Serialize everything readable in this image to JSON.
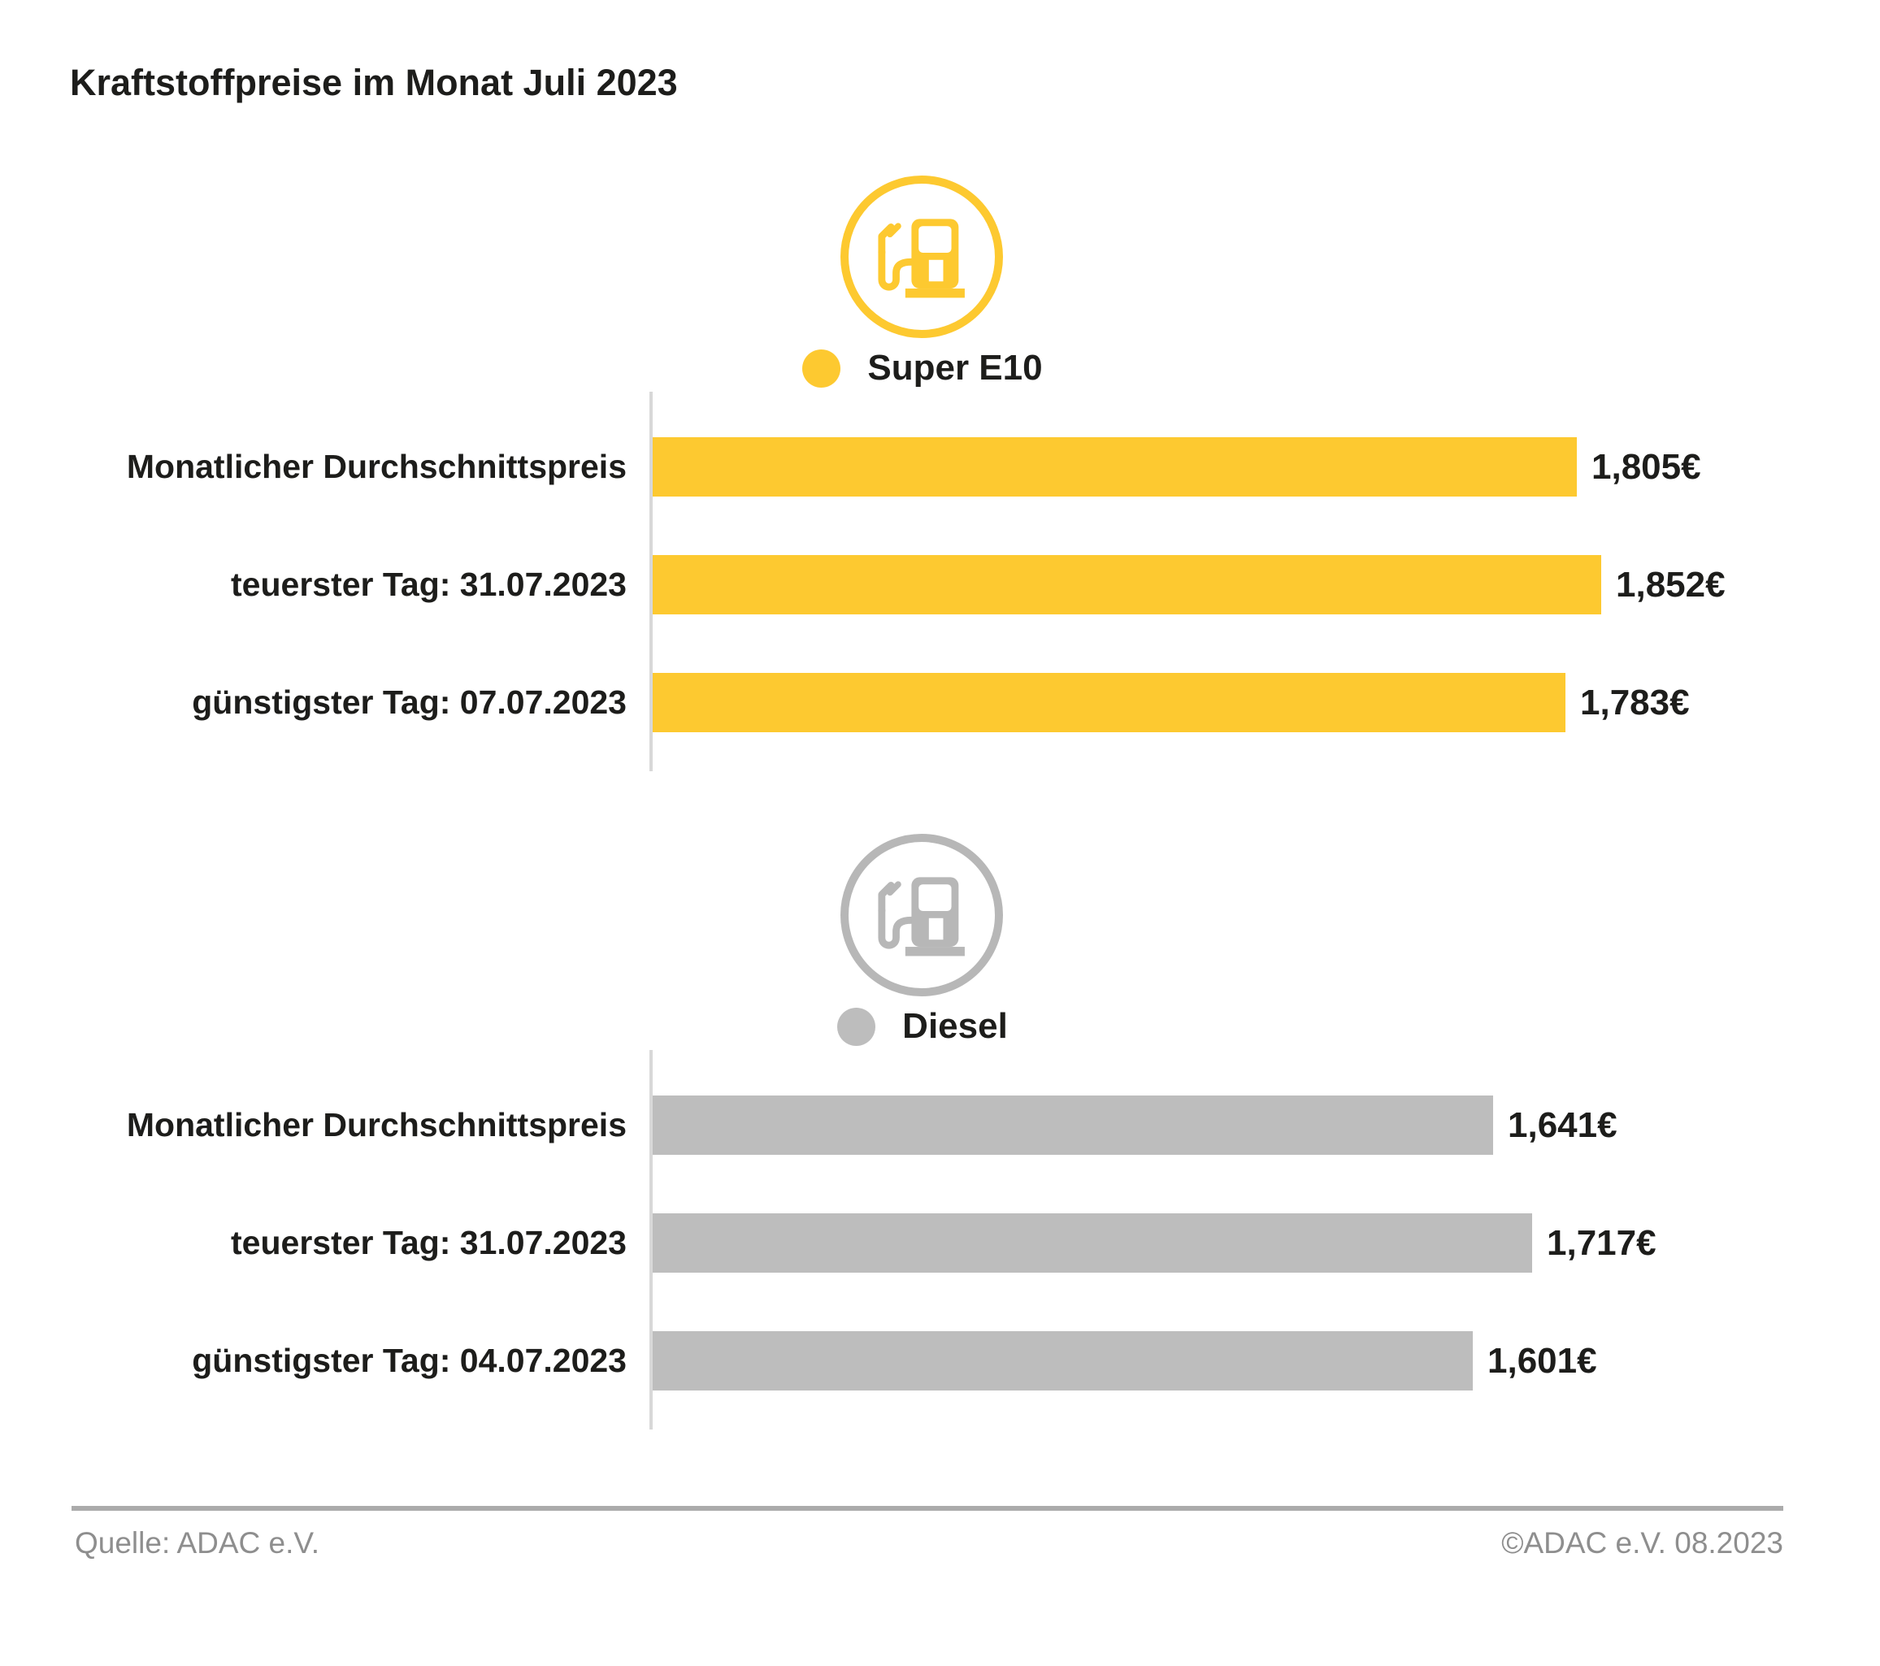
{
  "title": "Kraftstoffpreise im Monat Juli 2023",
  "colors": {
    "super_e10_yellow": "#FDC930",
    "diesel_gray": "#BDBDBD",
    "icon_gray": "#B7B7B7",
    "axis_gray": "#D8D8D8",
    "footer_gray": "#8E8E8E",
    "text_black": "#1D1D1B"
  },
  "chart_data": [
    {
      "type": "bar",
      "orientation": "horizontal",
      "title": "Super E10",
      "icon": "fuel-pump-icon",
      "color": "#FDC930",
      "legend_position": "top-center",
      "grid": false,
      "unit": "€ pro Liter",
      "xlim": [
        0,
        2.0
      ],
      "categories": [
        "Monatlicher Durchschnittspreis",
        "teuerster Tag: 31.07.2023",
        "günstigster Tag: 07.07.2023"
      ],
      "values": [
        1.805,
        1.852,
        1.783
      ],
      "value_labels": [
        "1,805€",
        "1,852€",
        "1,783€"
      ]
    },
    {
      "type": "bar",
      "orientation": "horizontal",
      "title": "Diesel",
      "icon": "fuel-pump-icon",
      "color": "#BDBDBD",
      "icon_color": "#B7B7B7",
      "legend_position": "top-center",
      "grid": false,
      "unit": "€ pro Liter",
      "xlim": [
        0,
        2.0
      ],
      "categories": [
        "Monatlicher Durchschnittspreis",
        "teuerster Tag: 31.07.2023",
        "günstigster Tag: 04.07.2023"
      ],
      "values": [
        1.641,
        1.717,
        1.601
      ],
      "value_labels": [
        "1,641€",
        "1,717€",
        "1,601€"
      ]
    }
  ],
  "footer": {
    "source": "Quelle: ADAC e.V.",
    "copyright": "©ADAC e.V. 08.2023"
  }
}
